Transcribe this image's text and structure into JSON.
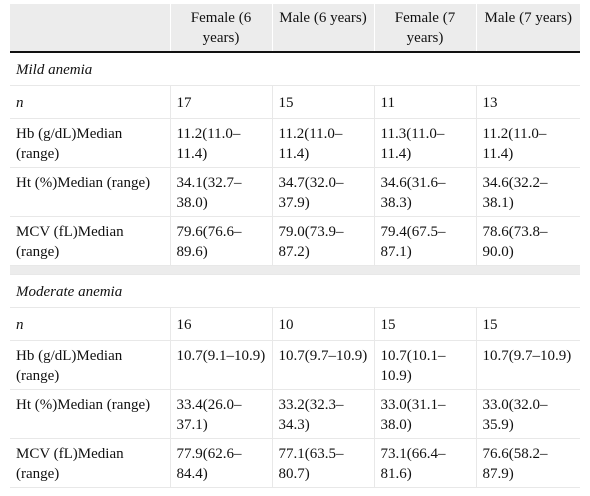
{
  "header": {
    "col0": "",
    "col1": "Female (6 years)",
    "col2": "Male (6 years)",
    "col3": "Female (7 years)",
    "col4": "Male (7 years)"
  },
  "sections": [
    {
      "title": "Mild anemia",
      "rows": [
        {
          "label": "n",
          "values": [
            "17",
            "15",
            "11",
            "13"
          ]
        },
        {
          "label": "Hb (g/dL)Median (range)",
          "values": [
            "11.2(11.0–11.4)",
            "11.2(11.0–11.4)",
            "11.3(11.0–11.4)",
            "11.2(11.0–11.4)"
          ]
        },
        {
          "label": "Ht (%)Median (range)",
          "values": [
            "34.1(32.7–38.0)",
            "34.7(32.0–37.9)",
            "34.6(31.6–38.3)",
            "34.6(32.2–38.1)"
          ]
        },
        {
          "label": "MCV (fL)Median (range)",
          "values": [
            "79.6(76.6–89.6)",
            "79.0(73.9–87.2)",
            "79.4(67.5–87.1)",
            "78.6(73.8–90.0)"
          ]
        }
      ]
    },
    {
      "title": "Moderate anemia",
      "rows": [
        {
          "label": "n",
          "values": [
            "16",
            "10",
            "15",
            "15"
          ]
        },
        {
          "label": "Hb (g/dL)Median (range)",
          "values": [
            "10.7(9.1–10.9)",
            "10.7(9.7–10.9)",
            "10.7(10.1–10.9)",
            "10.7(9.7–10.9)"
          ]
        },
        {
          "label": "Ht (%)Median (range)",
          "values": [
            "33.4(26.0–37.1)",
            "33.2(32.3–34.3)",
            "33.0(31.1–38.0)",
            "33.0(32.0–35.9)"
          ]
        },
        {
          "label": "MCV (fL)Median (range)",
          "values": [
            "77.9(62.6–84.4)",
            "77.1(63.5–80.7)",
            "73.1(66.4–81.6)",
            "76.6(58.2–87.9)"
          ]
        }
      ]
    }
  ]
}
